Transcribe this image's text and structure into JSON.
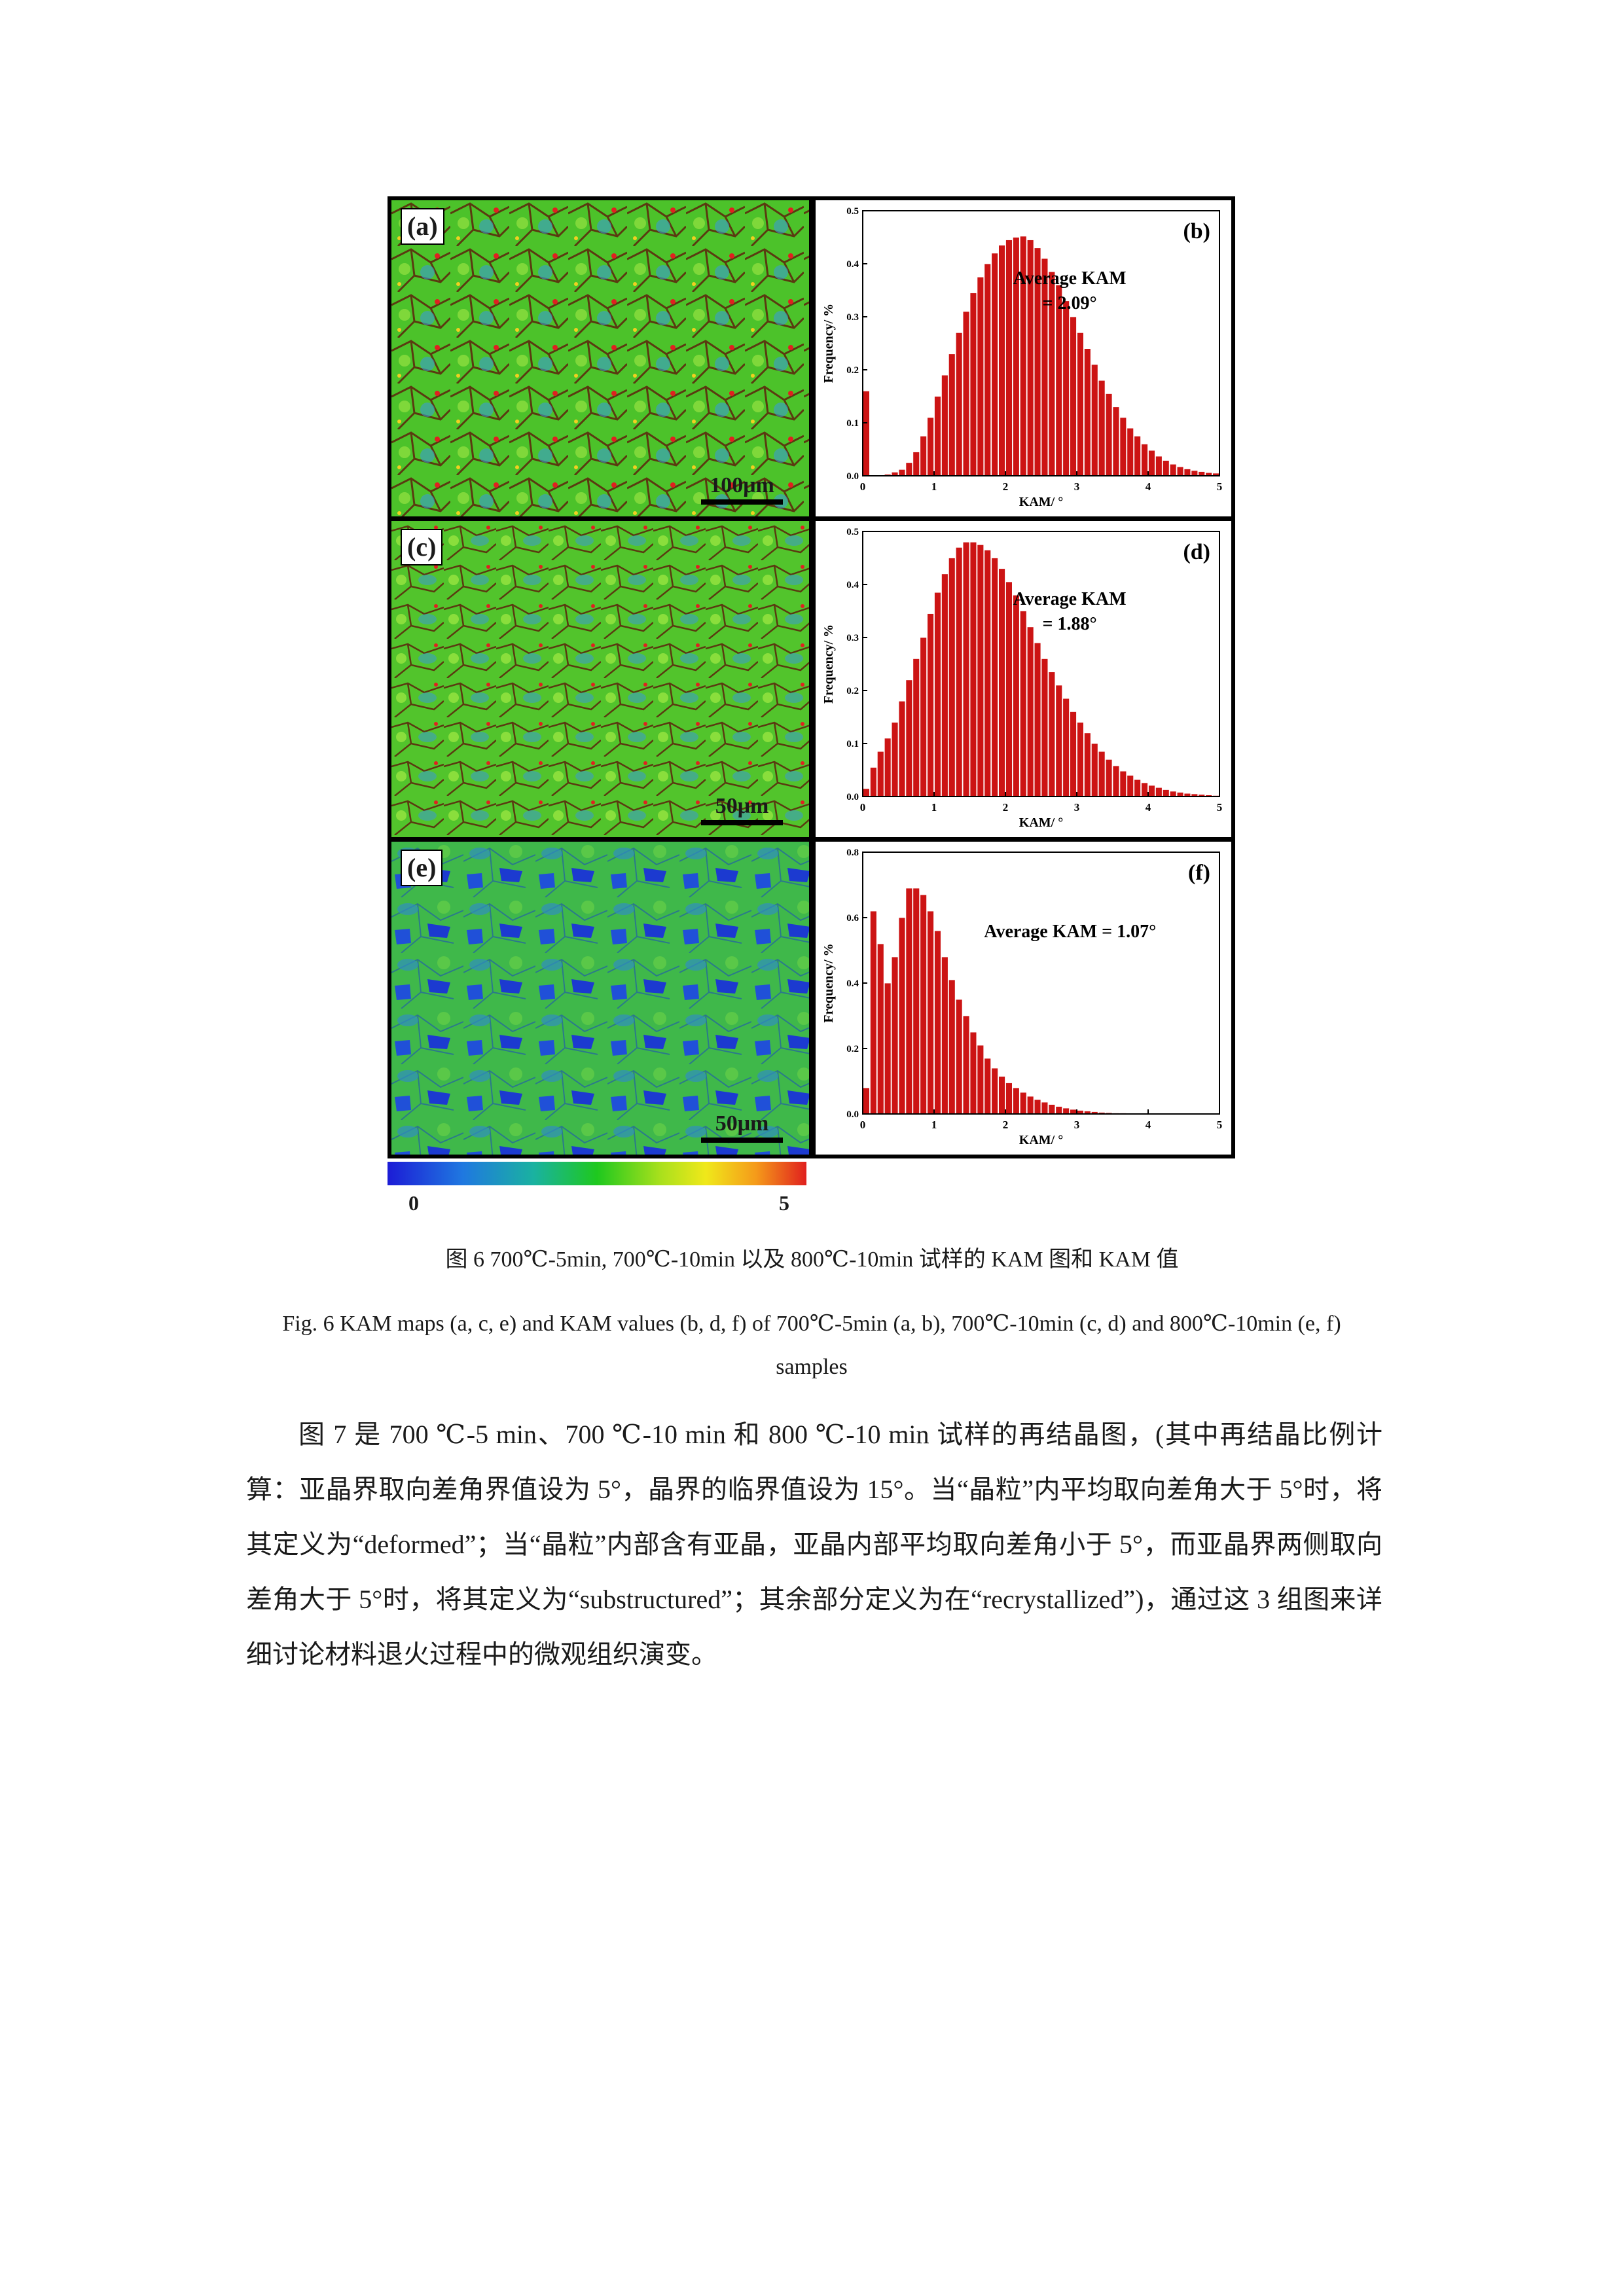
{
  "figure": {
    "panels": {
      "a": {
        "tag": "(a)",
        "scalebar": "100μm"
      },
      "c": {
        "tag": "(c)",
        "scalebar": "50μm"
      },
      "e": {
        "tag": "(e)",
        "scalebar": "50μm"
      }
    },
    "colorbar": {
      "min_label": "0",
      "max_label": "5"
    }
  },
  "chart_data": [
    {
      "type": "bar",
      "panel": "(b)",
      "xlabel": "KAM/ °",
      "ylabel": "Frequency/ %",
      "xlim": [
        0,
        5
      ],
      "ylim": [
        0,
        0.5
      ],
      "xticks": [
        "0",
        "1",
        "2",
        "3",
        "4",
        "5"
      ],
      "yticks": [
        "0.0",
        "0.1",
        "0.2",
        "0.3",
        "0.4",
        "0.5"
      ],
      "annotation": [
        "Average  KAM",
        "= 2.09°"
      ],
      "bar_color": "#cc1414",
      "bin_width": 0.1,
      "x": [
        0.05,
        0.15,
        0.25,
        0.35,
        0.45,
        0.55,
        0.65,
        0.75,
        0.85,
        0.95,
        1.05,
        1.15,
        1.25,
        1.35,
        1.45,
        1.55,
        1.65,
        1.75,
        1.85,
        1.95,
        2.05,
        2.15,
        2.25,
        2.35,
        2.45,
        2.55,
        2.65,
        2.75,
        2.85,
        2.95,
        3.05,
        3.15,
        3.25,
        3.35,
        3.45,
        3.55,
        3.65,
        3.75,
        3.85,
        3.95,
        4.05,
        4.15,
        4.25,
        4.35,
        4.45,
        4.55,
        4.65,
        4.75,
        4.85,
        4.95
      ],
      "values": [
        0.16,
        0.0,
        0.0,
        0.003,
        0.007,
        0.012,
        0.025,
        0.045,
        0.075,
        0.11,
        0.15,
        0.19,
        0.23,
        0.27,
        0.31,
        0.345,
        0.375,
        0.4,
        0.42,
        0.435,
        0.445,
        0.45,
        0.452,
        0.445,
        0.43,
        0.41,
        0.385,
        0.36,
        0.33,
        0.3,
        0.27,
        0.24,
        0.21,
        0.18,
        0.155,
        0.13,
        0.11,
        0.09,
        0.075,
        0.06,
        0.048,
        0.037,
        0.029,
        0.022,
        0.017,
        0.013,
        0.01,
        0.008,
        0.006,
        0.005
      ]
    },
    {
      "type": "bar",
      "panel": "(d)",
      "xlabel": "KAM/ °",
      "ylabel": "Frequency/ %",
      "xlim": [
        0,
        5
      ],
      "ylim": [
        0,
        0.5
      ],
      "xticks": [
        "0",
        "1",
        "2",
        "3",
        "4",
        "5"
      ],
      "yticks": [
        "0.0",
        "0.1",
        "0.2",
        "0.3",
        "0.4",
        "0.5"
      ],
      "annotation": [
        "Average  KAM",
        "= 1.88°"
      ],
      "bar_color": "#cc1414",
      "bin_width": 0.1,
      "x": [
        0.05,
        0.15,
        0.25,
        0.35,
        0.45,
        0.55,
        0.65,
        0.75,
        0.85,
        0.95,
        1.05,
        1.15,
        1.25,
        1.35,
        1.45,
        1.55,
        1.65,
        1.75,
        1.85,
        1.95,
        2.05,
        2.15,
        2.25,
        2.35,
        2.45,
        2.55,
        2.65,
        2.75,
        2.85,
        2.95,
        3.05,
        3.15,
        3.25,
        3.35,
        3.45,
        3.55,
        3.65,
        3.75,
        3.85,
        3.95,
        4.05,
        4.15,
        4.25,
        4.35,
        4.45,
        4.55,
        4.65,
        4.75,
        4.85,
        4.95
      ],
      "values": [
        0.015,
        0.055,
        0.085,
        0.11,
        0.14,
        0.18,
        0.22,
        0.26,
        0.3,
        0.345,
        0.385,
        0.42,
        0.45,
        0.47,
        0.48,
        0.48,
        0.475,
        0.465,
        0.45,
        0.43,
        0.405,
        0.38,
        0.35,
        0.32,
        0.29,
        0.26,
        0.235,
        0.21,
        0.185,
        0.16,
        0.14,
        0.12,
        0.1,
        0.085,
        0.07,
        0.058,
        0.048,
        0.04,
        0.032,
        0.026,
        0.021,
        0.017,
        0.013,
        0.01,
        0.008,
        0.006,
        0.005,
        0.004,
        0.003,
        0.002
      ]
    },
    {
      "type": "bar",
      "panel": "(f)",
      "xlabel": "KAM/ °",
      "ylabel": "Frequency/ %",
      "xlim": [
        0,
        5
      ],
      "ylim": [
        0,
        0.8
      ],
      "xticks": [
        "0",
        "1",
        "2",
        "3",
        "4",
        "5"
      ],
      "yticks": [
        "0.0",
        "0.2",
        "0.4",
        "0.6",
        "0.8"
      ],
      "annotation": [
        "Average  KAM = 1.07°"
      ],
      "bar_color": "#cc1414",
      "bin_width": 0.1,
      "x": [
        0.05,
        0.15,
        0.25,
        0.35,
        0.45,
        0.55,
        0.65,
        0.75,
        0.85,
        0.95,
        1.05,
        1.15,
        1.25,
        1.35,
        1.45,
        1.55,
        1.65,
        1.75,
        1.85,
        1.95,
        2.05,
        2.15,
        2.25,
        2.35,
        2.45,
        2.55,
        2.65,
        2.75,
        2.85,
        2.95,
        3.05,
        3.15,
        3.25,
        3.35,
        3.45,
        3.55,
        3.65,
        3.75,
        3.85,
        3.95,
        4.05,
        4.15,
        4.25,
        4.35,
        4.45,
        4.55,
        4.65,
        4.75,
        4.85,
        4.95
      ],
      "values": [
        0.08,
        0.62,
        0.52,
        0.4,
        0.48,
        0.6,
        0.69,
        0.69,
        0.67,
        0.62,
        0.56,
        0.48,
        0.41,
        0.35,
        0.3,
        0.25,
        0.21,
        0.17,
        0.14,
        0.115,
        0.095,
        0.08,
        0.066,
        0.054,
        0.044,
        0.036,
        0.029,
        0.023,
        0.018,
        0.014,
        0.011,
        0.009,
        0.007,
        0.005,
        0.004,
        0.003,
        0.003,
        0.002,
        0.002,
        0.001,
        0.001,
        0.001,
        0.0,
        0.0,
        0.0,
        0.0,
        0.0,
        0.0,
        0.0,
        0.0
      ]
    }
  ],
  "captions": {
    "cn": "图 6 700℃-5min, 700℃-10min 以及 800℃-10min 试样的 KAM 图和 KAM 值",
    "en": "Fig. 6 KAM maps (a, c, e) and KAM values (b, d, f) of 700℃-5min (a, b), 700℃-10min (c, d) and 800℃-10min (e, f) samples"
  },
  "body": {
    "paragraph": "图 7 是 700 ℃-5 min、700 ℃-10 min 和 800 ℃-10 min 试样的再结晶图，(其中再结晶比例计算：亚晶界取向差角界值设为 5°，晶界的临界值设为 15°。当“晶粒”内平均取向差角大于 5°时，将其定义为“deformed”；当“晶粒”内部含有亚晶，亚晶内部平均取向差角小于 5°，而亚晶界两侧取向差角大于 5°时，将其定义为“substructured”；其余部分定义为在“recrystallized”)，通过这 3 组图来详细讨论材料退火过程中的微观组织演变。"
  }
}
